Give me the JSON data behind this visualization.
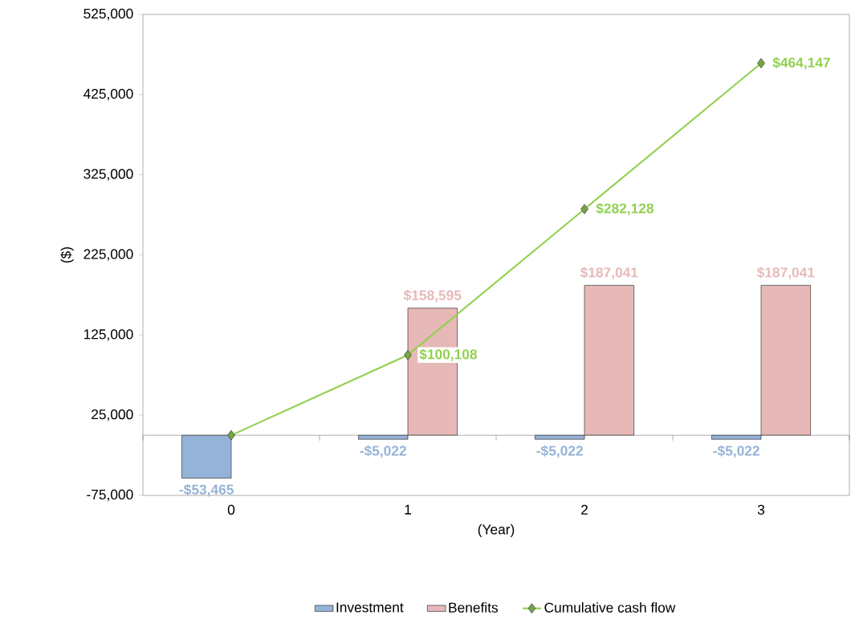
{
  "chart_data": {
    "type": "bar",
    "xlabel": "(Year)",
    "ylabel": "($)",
    "categories": [
      "0",
      "1",
      "2",
      "3"
    ],
    "ylim": [
      -75000,
      525000
    ],
    "yticks": [
      {
        "value": -75000,
        "label": "-75,000"
      },
      {
        "value": 25000,
        "label": "25,000"
      },
      {
        "value": 125000,
        "label": "125,000"
      },
      {
        "value": 225000,
        "label": "225,000"
      },
      {
        "value": 325000,
        "label": "325,000"
      },
      {
        "value": 425000,
        "label": "425,000"
      },
      {
        "value": 525000,
        "label": "525,000"
      }
    ],
    "legend": "bottom",
    "grid": false,
    "series": [
      {
        "name": "Investment",
        "color": "#95b3d7",
        "values": [
          -53465,
          -5022,
          -5022,
          -5022
        ],
        "value_labels": [
          "-$53,465",
          "-$5,022",
          "-$5,022",
          "-$5,022"
        ]
      },
      {
        "name": "Benefits",
        "color": "#e6b9b8",
        "values": [
          null,
          158595,
          187041,
          187041
        ],
        "value_labels": [
          null,
          "$158,595",
          "$187,041",
          "$187,041"
        ]
      },
      {
        "name": "Cumulative cash flow",
        "type": "line",
        "color": "#92d050",
        "marker": "diamond",
        "line_style": "solid",
        "values": [
          0,
          100108,
          282128,
          464147
        ],
        "value_labels": [
          null,
          "$100,108",
          "$282,128",
          "$464,147"
        ]
      }
    ]
  }
}
